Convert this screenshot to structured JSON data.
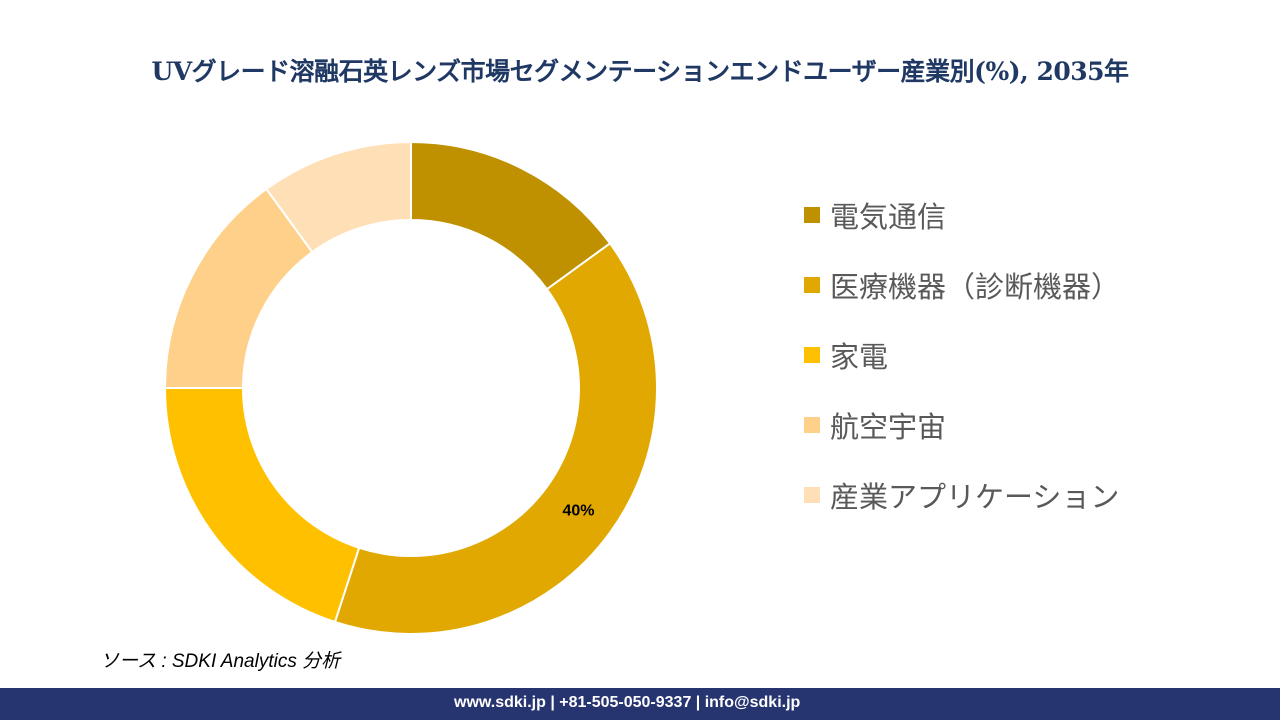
{
  "chart_data": {
    "type": "pie",
    "donut": true,
    "title": "UVグレード溶融石英レンズ市場セグメンテーションエンドユーザー産業別(%), 2035年",
    "categories": [
      "電気通信",
      "医療機器（診断機器）",
      "家電",
      "航空宇宙",
      "産業アプリケーション"
    ],
    "values": [
      15,
      40,
      20,
      15,
      10
    ],
    "colors": [
      "#BF9000",
      "#E0A800",
      "#FFC000",
      "#FFD08A",
      "#FFE0B6"
    ],
    "data_labels": [
      null,
      "40%",
      null,
      null,
      null
    ],
    "legend_position": "right"
  },
  "source": "ソース : SDKI Analytics 分析",
  "footer": "www.sdki.jp | +81-505-050-9337 | info@sdki.jp"
}
